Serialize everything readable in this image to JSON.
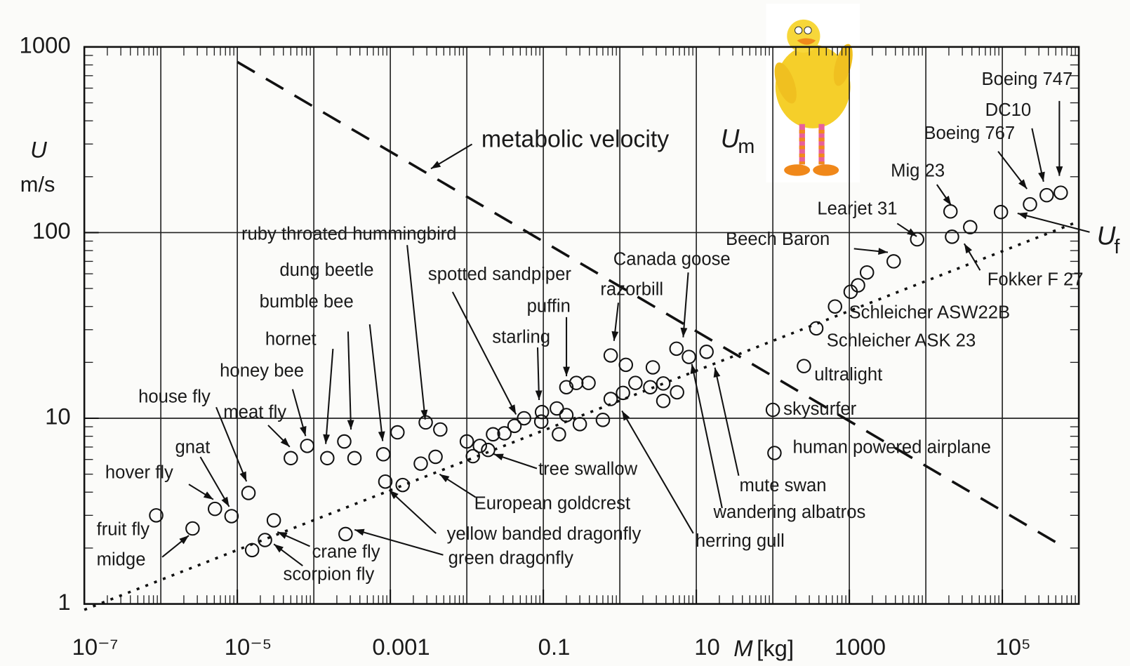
{
  "chart_data": {
    "type": "scatter",
    "xlabel": {
      "symbol": "M",
      "unit": "[kg]"
    },
    "ylabel": {
      "symbol": "U",
      "unit": "m/s"
    },
    "xscale": "log",
    "yscale": "log",
    "xlim": [
      1e-07,
      1000000.0
    ],
    "ylim": [
      1,
      1000
    ],
    "xticks": [
      {
        "value": 1e-07,
        "label": "10⁻⁷"
      },
      {
        "value": 1e-05,
        "label": "10⁻⁵"
      },
      {
        "value": 0.001,
        "label": "0.001"
      },
      0.1,
      10,
      1000,
      {
        "value": 100000,
        "label": "10⁵"
      }
    ],
    "xgrid": [
      1e-06,
      1e-05,
      0.0001,
      0.001,
      0.01,
      0.1,
      1,
      10,
      100,
      1000,
      10000,
      100000
    ],
    "yticks": [
      1,
      10,
      100,
      1000
    ],
    "ygrid": [
      10,
      100
    ],
    "color": "#111111",
    "x": [
      8.7e-07,
      2.6e-06,
      5.1e-06,
      8.4e-06,
      1.4e-05,
      1.56e-05,
      2.3e-05,
      3e-05,
      5e-05,
      8.2e-05,
      0.00015,
      0.00025,
      0.00026,
      0.00034,
      0.00081,
      0.00086,
      0.00124,
      0.00145,
      0.0025,
      0.0029,
      0.0039,
      0.0045,
      0.01,
      0.012,
      0.0148,
      0.019,
      0.022,
      0.031,
      0.042,
      0.056,
      0.094,
      0.096,
      0.15,
      0.16,
      0.2,
      0.2,
      0.27,
      0.3,
      0.39,
      0.6,
      0.76,
      0.76,
      1.1,
      1.2,
      1.6,
      2.5,
      2.7,
      3.7,
      3.7,
      5.5,
      5.6,
      8.0,
      13.6,
      100,
      105,
      255,
      370,
      650,
      1040,
      1300,
      1700,
      3800,
      7700,
      22000,
      21000,
      38000,
      96000,
      230000,
      380000,
      580000
    ],
    "values": [
      3.0,
      2.55,
      3.25,
      2.97,
      3.96,
      1.95,
      2.21,
      2.82,
      6.1,
      7.1,
      6.1,
      7.5,
      2.38,
      6.1,
      6.4,
      4.56,
      8.4,
      4.37,
      5.7,
      9.5,
      6.2,
      8.7,
      7.5,
      6.25,
      7.1,
      6.75,
      8.2,
      8.3,
      9.1,
      10.0,
      9.6,
      10.8,
      11.3,
      8.2,
      10.4,
      14.7,
      15.5,
      9.3,
      15.5,
      9.8,
      12.7,
      21.8,
      13.7,
      19.4,
      15.5,
      14.7,
      18.8,
      15.4,
      12.4,
      23.7,
      13.8,
      21.4,
      22.8,
      11.1,
      6.5,
      19.1,
      30.5,
      40,
      48,
      52,
      61,
      70,
      92,
      95,
      130,
      107,
      129,
      142,
      159,
      164
    ],
    "lines": [
      {
        "name": "metabolic velocity",
        "symbol": "U",
        "subscript": "m",
        "style": "dashed",
        "x": [
          1e-05,
          500000
        ],
        "values": [
          830,
          2.15
        ]
      },
      {
        "symbol": "U",
        "subscript": "f",
        "style": "dotted",
        "x": [
          1e-07,
          1000000
        ],
        "values": [
          0.93,
          115
        ]
      }
    ],
    "annotations": [
      "ruby throated hummingbird",
      "dung beetle",
      "bumble bee",
      "hornet",
      "honey bee",
      "house fly",
      "meat fly",
      "gnat",
      "hover fly",
      "fruit fly",
      "midge",
      "crane fly",
      "scorpion fly",
      "spotted sandpiper",
      "puffin",
      "starling",
      "razorbill",
      "Canada goose",
      "tree swallow",
      "European goldcrest",
      "yellow banded dragonfly",
      "green dragonfly",
      "herring gull",
      "mute swan",
      "wandering albatros",
      "human powered airplane",
      "skysurfer",
      "ultralight",
      "Schleicher ASK 23",
      "Schleicher ASW22B",
      "Beech Baron",
      "Learjet 31",
      "Mig 23",
      "Fokker F 27",
      "Boeing 767",
      "DC10",
      "Boeing 747"
    ]
  }
}
